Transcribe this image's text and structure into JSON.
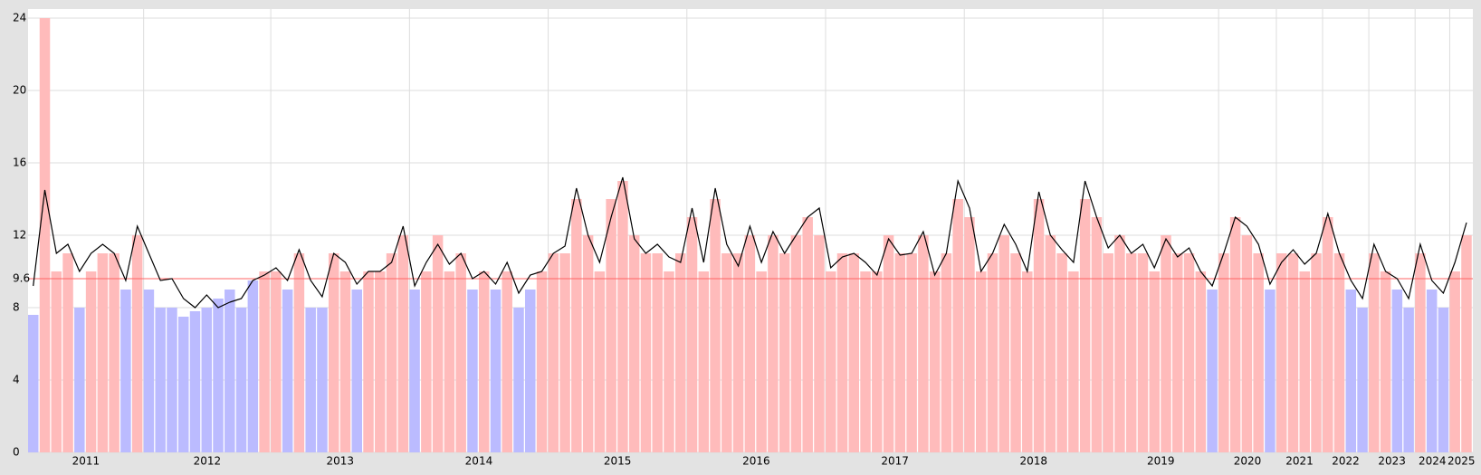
{
  "chart_data": {
    "type": "bar",
    "ylim": [
      0,
      24.5
    ],
    "yticks": [
      0,
      4,
      8,
      12,
      16,
      20,
      24
    ],
    "grid": true,
    "threshold": 9.6,
    "threshold_color": "#ff6666",
    "above_color": "#ffbbbb",
    "below_color": "#bbbbff",
    "line_color": "#000000",
    "groups": [
      {
        "label": "2011",
        "values": [
          7.6,
          24,
          10,
          11,
          8,
          10,
          11,
          11,
          9,
          12
        ],
        "average": [
          9.2,
          14.5,
          11,
          11.5,
          10,
          11,
          11.5,
          11,
          9.5,
          12.5
        ]
      },
      {
        "label": "2012",
        "values": [
          9,
          8,
          8,
          7.5,
          7.8,
          8,
          8.5,
          9,
          8,
          9.5,
          10
        ],
        "average": [
          11,
          9.5,
          9.6,
          8.5,
          8,
          8.7,
          8,
          8.3,
          8.5,
          9.5,
          9.8
        ]
      },
      {
        "label": "2013",
        "values": [
          10,
          9,
          11,
          8,
          8,
          11,
          10,
          9,
          10,
          10,
          11,
          12
        ],
        "average": [
          10.2,
          9.5,
          11.2,
          9.5,
          8.6,
          11,
          10.5,
          9.3,
          10,
          10,
          10.5,
          12.5
        ]
      },
      {
        "label": "2014",
        "values": [
          9,
          10,
          12,
          10,
          11,
          9,
          10,
          9,
          10,
          8,
          9,
          10
        ],
        "average": [
          9.2,
          10.5,
          11.5,
          10.4,
          11,
          9.6,
          10,
          9.3,
          10.5,
          8.8,
          9.8,
          10
        ]
      },
      {
        "label": "2015",
        "values": [
          11,
          11,
          14,
          12,
          10,
          14,
          15,
          12,
          11,
          11,
          10,
          11
        ],
        "average": [
          11,
          11.4,
          14.6,
          12,
          10.5,
          13,
          15.2,
          11.8,
          11,
          11.5,
          10.8,
          10.5
        ]
      },
      {
        "label": "2016",
        "values": [
          13,
          10,
          14,
          11,
          11,
          12,
          10,
          12,
          11,
          12,
          13,
          12
        ],
        "average": [
          13.5,
          10.5,
          14.6,
          11.5,
          10.3,
          12.5,
          10.5,
          12.2,
          11,
          12,
          13,
          13.5
        ]
      },
      {
        "label": "2017",
        "values": [
          10,
          11,
          11,
          10,
          10,
          12,
          11,
          11,
          12,
          10,
          11,
          14
        ],
        "average": [
          10.2,
          10.8,
          11,
          10.5,
          9.8,
          11.8,
          10.9,
          11,
          12.2,
          9.8,
          11,
          15
        ]
      },
      {
        "label": "2018",
        "values": [
          13,
          10,
          11,
          12,
          11,
          10,
          14,
          12,
          11,
          10,
          14,
          13
        ],
        "average": [
          13.5,
          10,
          11,
          12.6,
          11.5,
          10,
          14.4,
          12,
          11.2,
          10.5,
          15,
          13
        ]
      },
      {
        "label": "2019",
        "values": [
          11,
          12,
          11,
          11,
          10,
          12,
          11,
          11,
          10,
          9
        ],
        "average": [
          11.3,
          12,
          11,
          11.5,
          10.2,
          11.8,
          10.8,
          11.3,
          10,
          9.2
        ]
      },
      {
        "label": "2020",
        "values": [
          11,
          13,
          12,
          11,
          9
        ],
        "average": [
          11,
          13,
          12.5,
          11.5,
          9.3
        ]
      },
      {
        "label": "2021",
        "values": [
          11,
          11,
          10,
          11
        ],
        "average": [
          10.5,
          11.2,
          10.4,
          11
        ]
      },
      {
        "label": "2022",
        "values": [
          13,
          11,
          9,
          8
        ],
        "average": [
          13.2,
          11,
          9.5,
          8.5
        ]
      },
      {
        "label": "2023",
        "values": [
          11,
          10,
          9,
          8
        ],
        "average": [
          11.5,
          10,
          9.6,
          8.5
        ]
      },
      {
        "label": "2024",
        "values": [
          11,
          9,
          8
        ],
        "average": [
          11.5,
          9.5,
          8.8
        ]
      },
      {
        "label": "2025",
        "values": [
          10,
          12
        ],
        "average": [
          10.5,
          12.7
        ]
      }
    ]
  }
}
